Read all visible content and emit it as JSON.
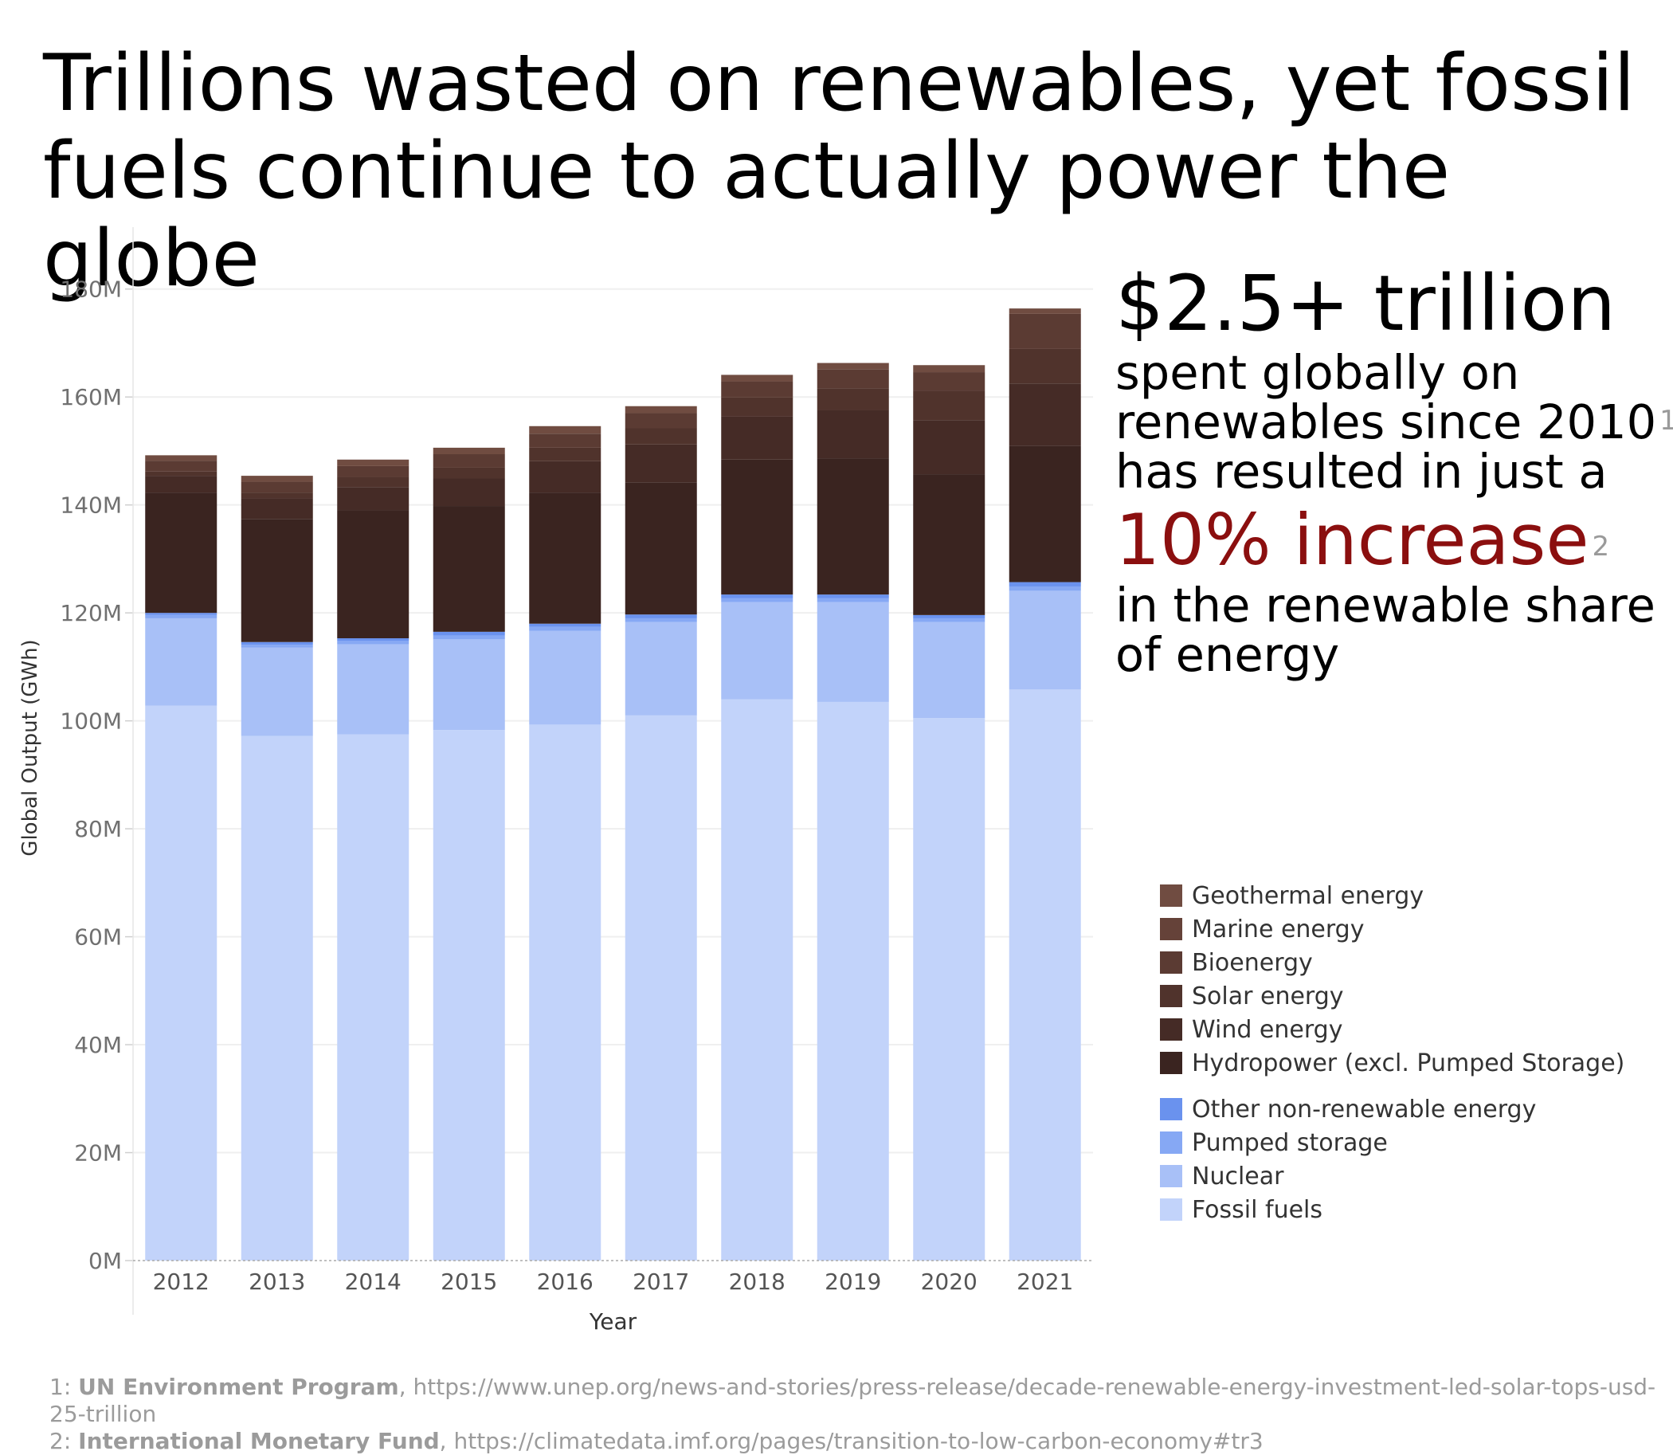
{
  "title_line1": "Trillions wasted on renewables, yet fossil",
  "title_line2": "fuels continue to actually power the globe",
  "callout": {
    "amount": "$2.5+ trillion",
    "line1": "spent globally on",
    "line2": "renewables since 2010",
    "sup1": "1",
    "line3": "has resulted in just a",
    "highlight": "10% increase",
    "sup2": "2",
    "line4": "in the renewable share",
    "line5": "of energy",
    "highlight_color": "#8b0f0f"
  },
  "chart_data": {
    "type": "bar",
    "stacked": true,
    "xlabel": "Year",
    "ylabel": "Global Output (GWh)",
    "ylim": [
      0,
      190000000
    ],
    "yticks": [
      0,
      20000000,
      40000000,
      60000000,
      80000000,
      100000000,
      120000000,
      140000000,
      160000000,
      180000000
    ],
    "ytick_labels": [
      "0M",
      "20M",
      "40M",
      "60M",
      "80M",
      "100M",
      "120M",
      "140M",
      "160M",
      "180M"
    ],
    "grid": true,
    "legend_position": "right",
    "categories": [
      "2012",
      "2013",
      "2014",
      "2015",
      "2016",
      "2017",
      "2018",
      "2019",
      "2020",
      "2021"
    ],
    "series": [
      {
        "name": "Fossil fuels",
        "color": "#c2d3fa",
        "values": [
          102800000,
          97200000,
          97500000,
          98300000,
          99300000,
          101000000,
          104000000,
          103500000,
          100500000,
          105800000
        ]
      },
      {
        "name": "Nuclear",
        "color": "#a8c0f7",
        "values": [
          16200000,
          16400000,
          16700000,
          16800000,
          17400000,
          17300000,
          18000000,
          18500000,
          17800000,
          18300000
        ]
      },
      {
        "name": "Pumped storage",
        "color": "#86a8f4",
        "values": [
          600000,
          500000,
          600000,
          700000,
          700000,
          700000,
          700000,
          700000,
          700000,
          800000
        ]
      },
      {
        "name": "Other non-renewable energy",
        "color": "#6a92ee",
        "values": [
          400000,
          500000,
          500000,
          700000,
          600000,
          700000,
          700000,
          700000,
          600000,
          800000
        ]
      },
      {
        "name": "Hydropower (excl. Pumped Storage)",
        "color": "#3a2420",
        "values": [
          22300000,
          22800000,
          23700000,
          23300000,
          24300000,
          24500000,
          25000000,
          25200000,
          26100000,
          25300000
        ]
      },
      {
        "name": "Wind energy",
        "color": "#452b26",
        "values": [
          3100000,
          3800000,
          4300000,
          5100000,
          5800000,
          7000000,
          8000000,
          9000000,
          10000000,
          11500000
        ]
      },
      {
        "name": "Solar energy",
        "color": "#50332c",
        "values": [
          800000,
          1100000,
          1900000,
          2000000,
          2500000,
          3000000,
          3500000,
          4000000,
          5500000,
          6400000
        ]
      },
      {
        "name": "Bioenergy",
        "color": "#5b3b33",
        "values": [
          2000000,
          2000000,
          2000000,
          2500000,
          2600000,
          2800000,
          3000000,
          3500000,
          3400000,
          6500000
        ]
      },
      {
        "name": "Marine energy",
        "color": "#654239",
        "values": [
          0,
          0,
          0,
          0,
          0,
          0,
          0,
          0,
          0,
          0
        ]
      },
      {
        "name": "Geothermal energy",
        "color": "#704c41",
        "values": [
          1000000,
          1100000,
          1200000,
          1200000,
          1400000,
          1300000,
          1200000,
          1200000,
          1300000,
          1000000
        ]
      }
    ]
  },
  "legend_renewable": [
    {
      "label": "Geothermal energy",
      "color": "#704c41"
    },
    {
      "label": "Marine energy",
      "color": "#654239"
    },
    {
      "label": "Bioenergy",
      "color": "#5b3b33"
    },
    {
      "label": "Solar energy",
      "color": "#50332c"
    },
    {
      "label": "Wind energy",
      "color": "#452b26"
    },
    {
      "label": "Hydropower (excl. Pumped Storage)",
      "color": "#3a2420"
    }
  ],
  "legend_nonrenewable": [
    {
      "label": "Other non-renewable energy",
      "color": "#6a92ee"
    },
    {
      "label": "Pumped storage",
      "color": "#86a8f4"
    },
    {
      "label": "Nuclear",
      "color": "#a8c0f7"
    },
    {
      "label": "Fossil fuels",
      "color": "#c2d3fa"
    }
  ],
  "footnotes": [
    {
      "num": "1: ",
      "source": "UN Environment Program",
      "url": ", https://www.unep.org/news-and-stories/press-release/decade-renewable-energy-investment-led-solar-tops-usd-25-trillion"
    },
    {
      "num": "2: ",
      "source": "International Monetary Fund",
      "url": ", https://climatedata.imf.org/pages/transition-to-low-carbon-economy#tr3"
    }
  ]
}
